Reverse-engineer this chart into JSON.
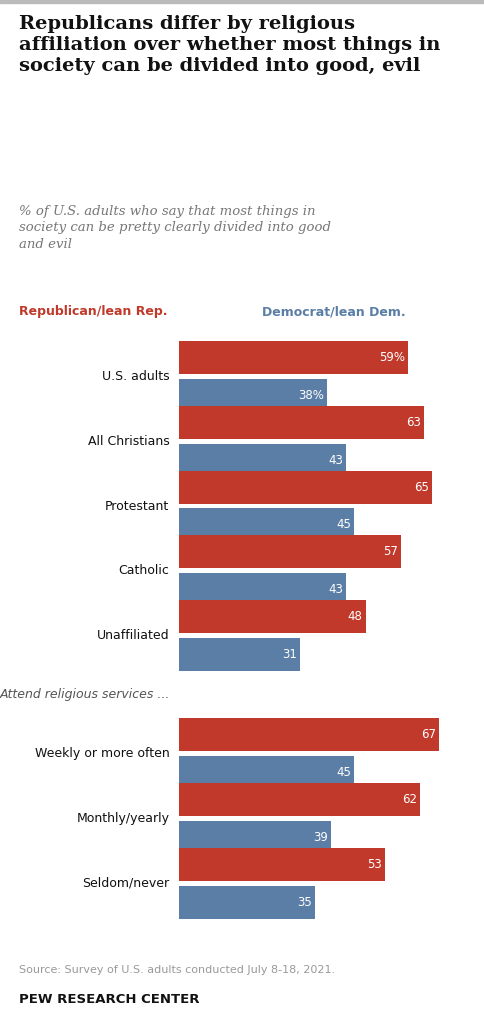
{
  "title": "Republicans differ by religious\naffiliation over whether most things in\nsociety can be divided into good, evil",
  "subtitle": "% of U.S. adults who say that most things in\nsociety can be pretty clearly divided into good\nand evil",
  "legend_rep": "Republican/lean Rep.",
  "legend_dem": "Democrat/lean Dem.",
  "categories": [
    "U.S. adults",
    "All Christians",
    "Protestant",
    "Catholic",
    "Unaffiliated",
    "Weekly or more often",
    "Monthly/yearly",
    "Seldom/never"
  ],
  "section_label": "Attend religious services ...",
  "section_before_index": 5,
  "rep_values": [
    59,
    63,
    65,
    57,
    48,
    67,
    62,
    53
  ],
  "dem_values": [
    38,
    43,
    45,
    43,
    31,
    45,
    39,
    35
  ],
  "rep_labels": [
    "59%",
    "63",
    "65",
    "57",
    "48",
    "67",
    "62",
    "53"
  ],
  "dem_labels": [
    "38%",
    "43",
    "45",
    "43",
    "31",
    "45",
    "39",
    "35"
  ],
  "rep_color": "#c0392b",
  "dem_color": "#5b7ea6",
  "bg_color": "#ffffff",
  "source": "Source: Survey of U.S. adults conducted July 8-18, 2021.",
  "footer": "PEW RESEARCH CENTER",
  "xlim": [
    0,
    75
  ]
}
